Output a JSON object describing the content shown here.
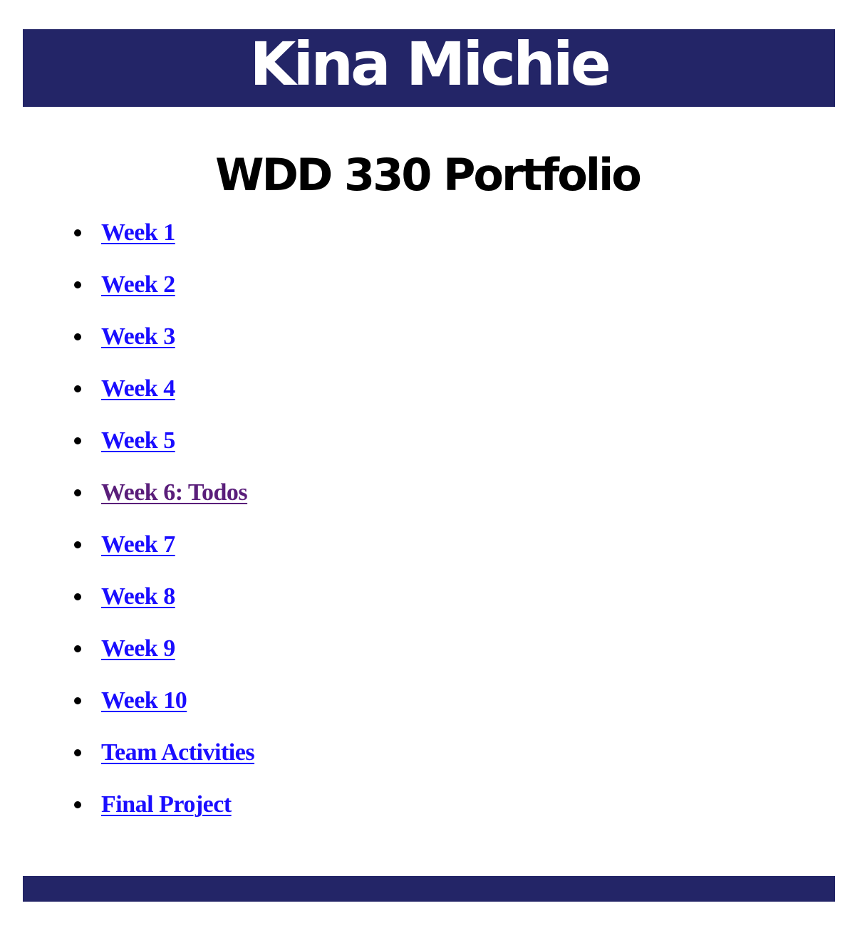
{
  "header": {
    "title": "Kina Michie",
    "background_color": "#232567"
  },
  "main": {
    "heading": "WDD 330 Portfolio",
    "links": [
      {
        "label": "Week 1",
        "visited": false
      },
      {
        "label": "Week 2",
        "visited": false
      },
      {
        "label": "Week 3",
        "visited": false
      },
      {
        "label": "Week 4",
        "visited": false
      },
      {
        "label": "Week 5",
        "visited": false
      },
      {
        "label": "Week 6: Todos",
        "visited": true
      },
      {
        "label": "Week 7",
        "visited": false
      },
      {
        "label": "Week 8",
        "visited": false
      },
      {
        "label": "Week 9",
        "visited": false
      },
      {
        "label": "Week 10",
        "visited": false
      },
      {
        "label": "Team Activities",
        "visited": false
      },
      {
        "label": "Final Project",
        "visited": false
      }
    ]
  },
  "colors": {
    "link": "#1a0dff",
    "visited_link": "#5a1e7a",
    "footer": "#232567"
  }
}
